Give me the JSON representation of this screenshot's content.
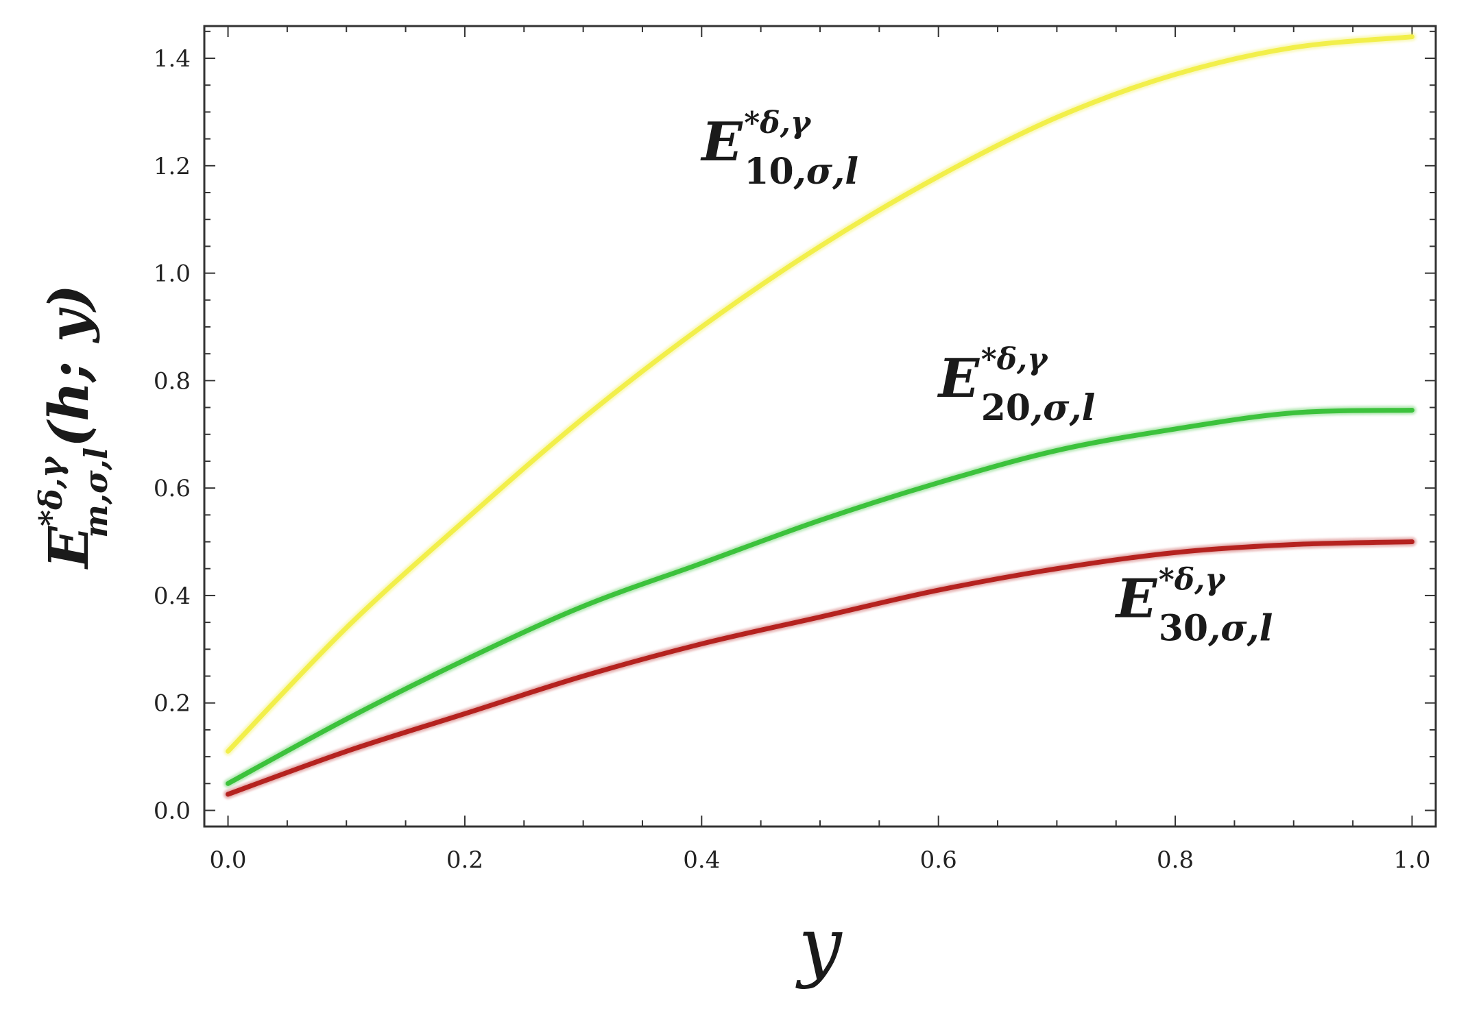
{
  "chart_data": {
    "type": "line",
    "title": "",
    "xlabel": "y",
    "ylabel": {
      "base": "E",
      "superscript": "*δ,γ",
      "subscript": "m,σ,l",
      "argument": "(h; y)"
    },
    "xlim": [
      -0.02,
      1.02
    ],
    "ylim": [
      -0.03,
      1.46
    ],
    "x_ticks": [
      0.0,
      0.2,
      0.4,
      0.6,
      0.8,
      1.0
    ],
    "x_tick_labels": [
      "0.0",
      "0.2",
      "0.4",
      "0.6",
      "0.8",
      "1.0"
    ],
    "y_ticks": [
      0.0,
      0.2,
      0.4,
      0.6,
      0.8,
      1.0,
      1.2,
      1.4
    ],
    "y_tick_labels": [
      "0.0",
      "0.2",
      "0.4",
      "0.6",
      "0.8",
      "1.0",
      "1.2",
      "1.4"
    ],
    "grid": false,
    "legend": "none",
    "x": [
      0.0,
      0.1,
      0.2,
      0.3,
      0.4,
      0.5,
      0.6,
      0.7,
      0.8,
      0.9,
      1.0
    ],
    "series": [
      {
        "color": "#f2ef4a",
        "values": [
          0.11,
          0.34,
          0.54,
          0.73,
          0.9,
          1.05,
          1.18,
          1.29,
          1.37,
          1.42,
          1.44
        ]
      },
      {
        "color": "#3cc23c",
        "values": [
          0.05,
          0.17,
          0.28,
          0.38,
          0.46,
          0.54,
          0.61,
          0.67,
          0.71,
          0.74,
          0.745
        ]
      },
      {
        "color": "#b5221f",
        "values": [
          0.03,
          0.11,
          0.18,
          0.25,
          0.31,
          0.36,
          0.41,
          0.45,
          0.48,
          0.495,
          0.5
        ]
      }
    ],
    "annotations": [
      {
        "base": "E",
        "superscript": "*δ,γ",
        "subscript_num": "10",
        "subscript_rest": ",σ,l",
        "anchor": [
          0.4,
          1.21
        ]
      },
      {
        "base": "E",
        "superscript": "*δ,γ",
        "subscript_num": "20",
        "subscript_rest": ",σ,l",
        "anchor": [
          0.6,
          0.77
        ]
      },
      {
        "base": "E",
        "superscript": "*δ,γ",
        "subscript_num": "30",
        "subscript_rest": ",σ,l",
        "anchor": [
          0.75,
          0.36
        ]
      }
    ]
  }
}
